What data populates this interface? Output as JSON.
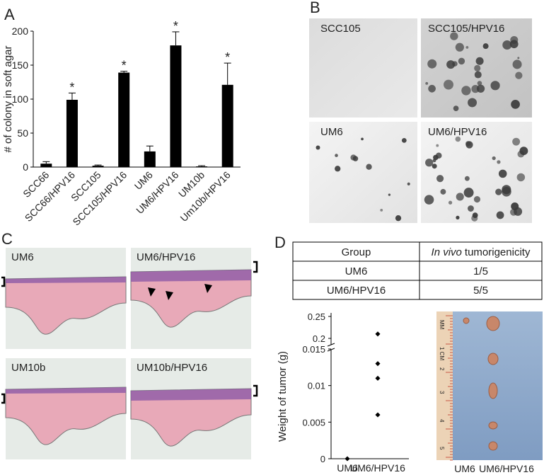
{
  "panels": [
    "A",
    "B",
    "C",
    "D"
  ],
  "chart_data": [
    {
      "type": "bar",
      "ylabel": "# of colony in soft agar",
      "categories": [
        "SCC66",
        "SCC66/HPV16",
        "SCC105",
        "SCC105/HPV16",
        "UM6",
        "UM6/HPV16",
        "UM10b",
        "Um10b/HPV16"
      ],
      "values": [
        5,
        99,
        2,
        139,
        23,
        179,
        1,
        121
      ],
      "errors": [
        3,
        10,
        1,
        2,
        8,
        20,
        1,
        32
      ],
      "significance_marks": [
        null,
        "*",
        null,
        "*",
        null,
        "*",
        null,
        "*"
      ],
      "color": "#000000",
      "ylim": [
        0,
        200
      ],
      "yticks": [
        0,
        50,
        100,
        150,
        200
      ]
    },
    {
      "type": "strip",
      "ylabel": "Weight of tumor (g)",
      "categories": [
        "UM6",
        "UM6/HPV16"
      ],
      "values": [
        [
          0
        ],
        [
          0.21,
          0.013,
          0.011,
          0.006
        ]
      ],
      "marker": "diamond",
      "color": "#000000",
      "ylim_segments": [
        [
          0,
          0.015
        ],
        [
          0.2,
          0.25
        ]
      ],
      "yticks": [
        0,
        0.005,
        0.01,
        0.015,
        0.2,
        0.25
      ]
    }
  ],
  "panel_b": {
    "labels": [
      "SCC105",
      "SCC105/HPV16",
      "UM6",
      "UM6/HPV16"
    ]
  },
  "panel_c": {
    "labels": [
      "UM6",
      "UM6/HPV16",
      "UM10b",
      "UM10b/HPV16"
    ]
  },
  "table": {
    "header": [
      "Group",
      [
        "In vivo",
        "tumorigenicity"
      ]
    ],
    "rows": [
      [
        "UM6",
        "1/5"
      ],
      [
        "UM6/HPV16",
        "5/5"
      ]
    ]
  },
  "photo": {
    "labels": [
      "UM6",
      "UM6/HPV16"
    ],
    "ruler_labels": [
      "MM",
      "1 CM",
      "2",
      "3",
      "4",
      "5"
    ]
  }
}
